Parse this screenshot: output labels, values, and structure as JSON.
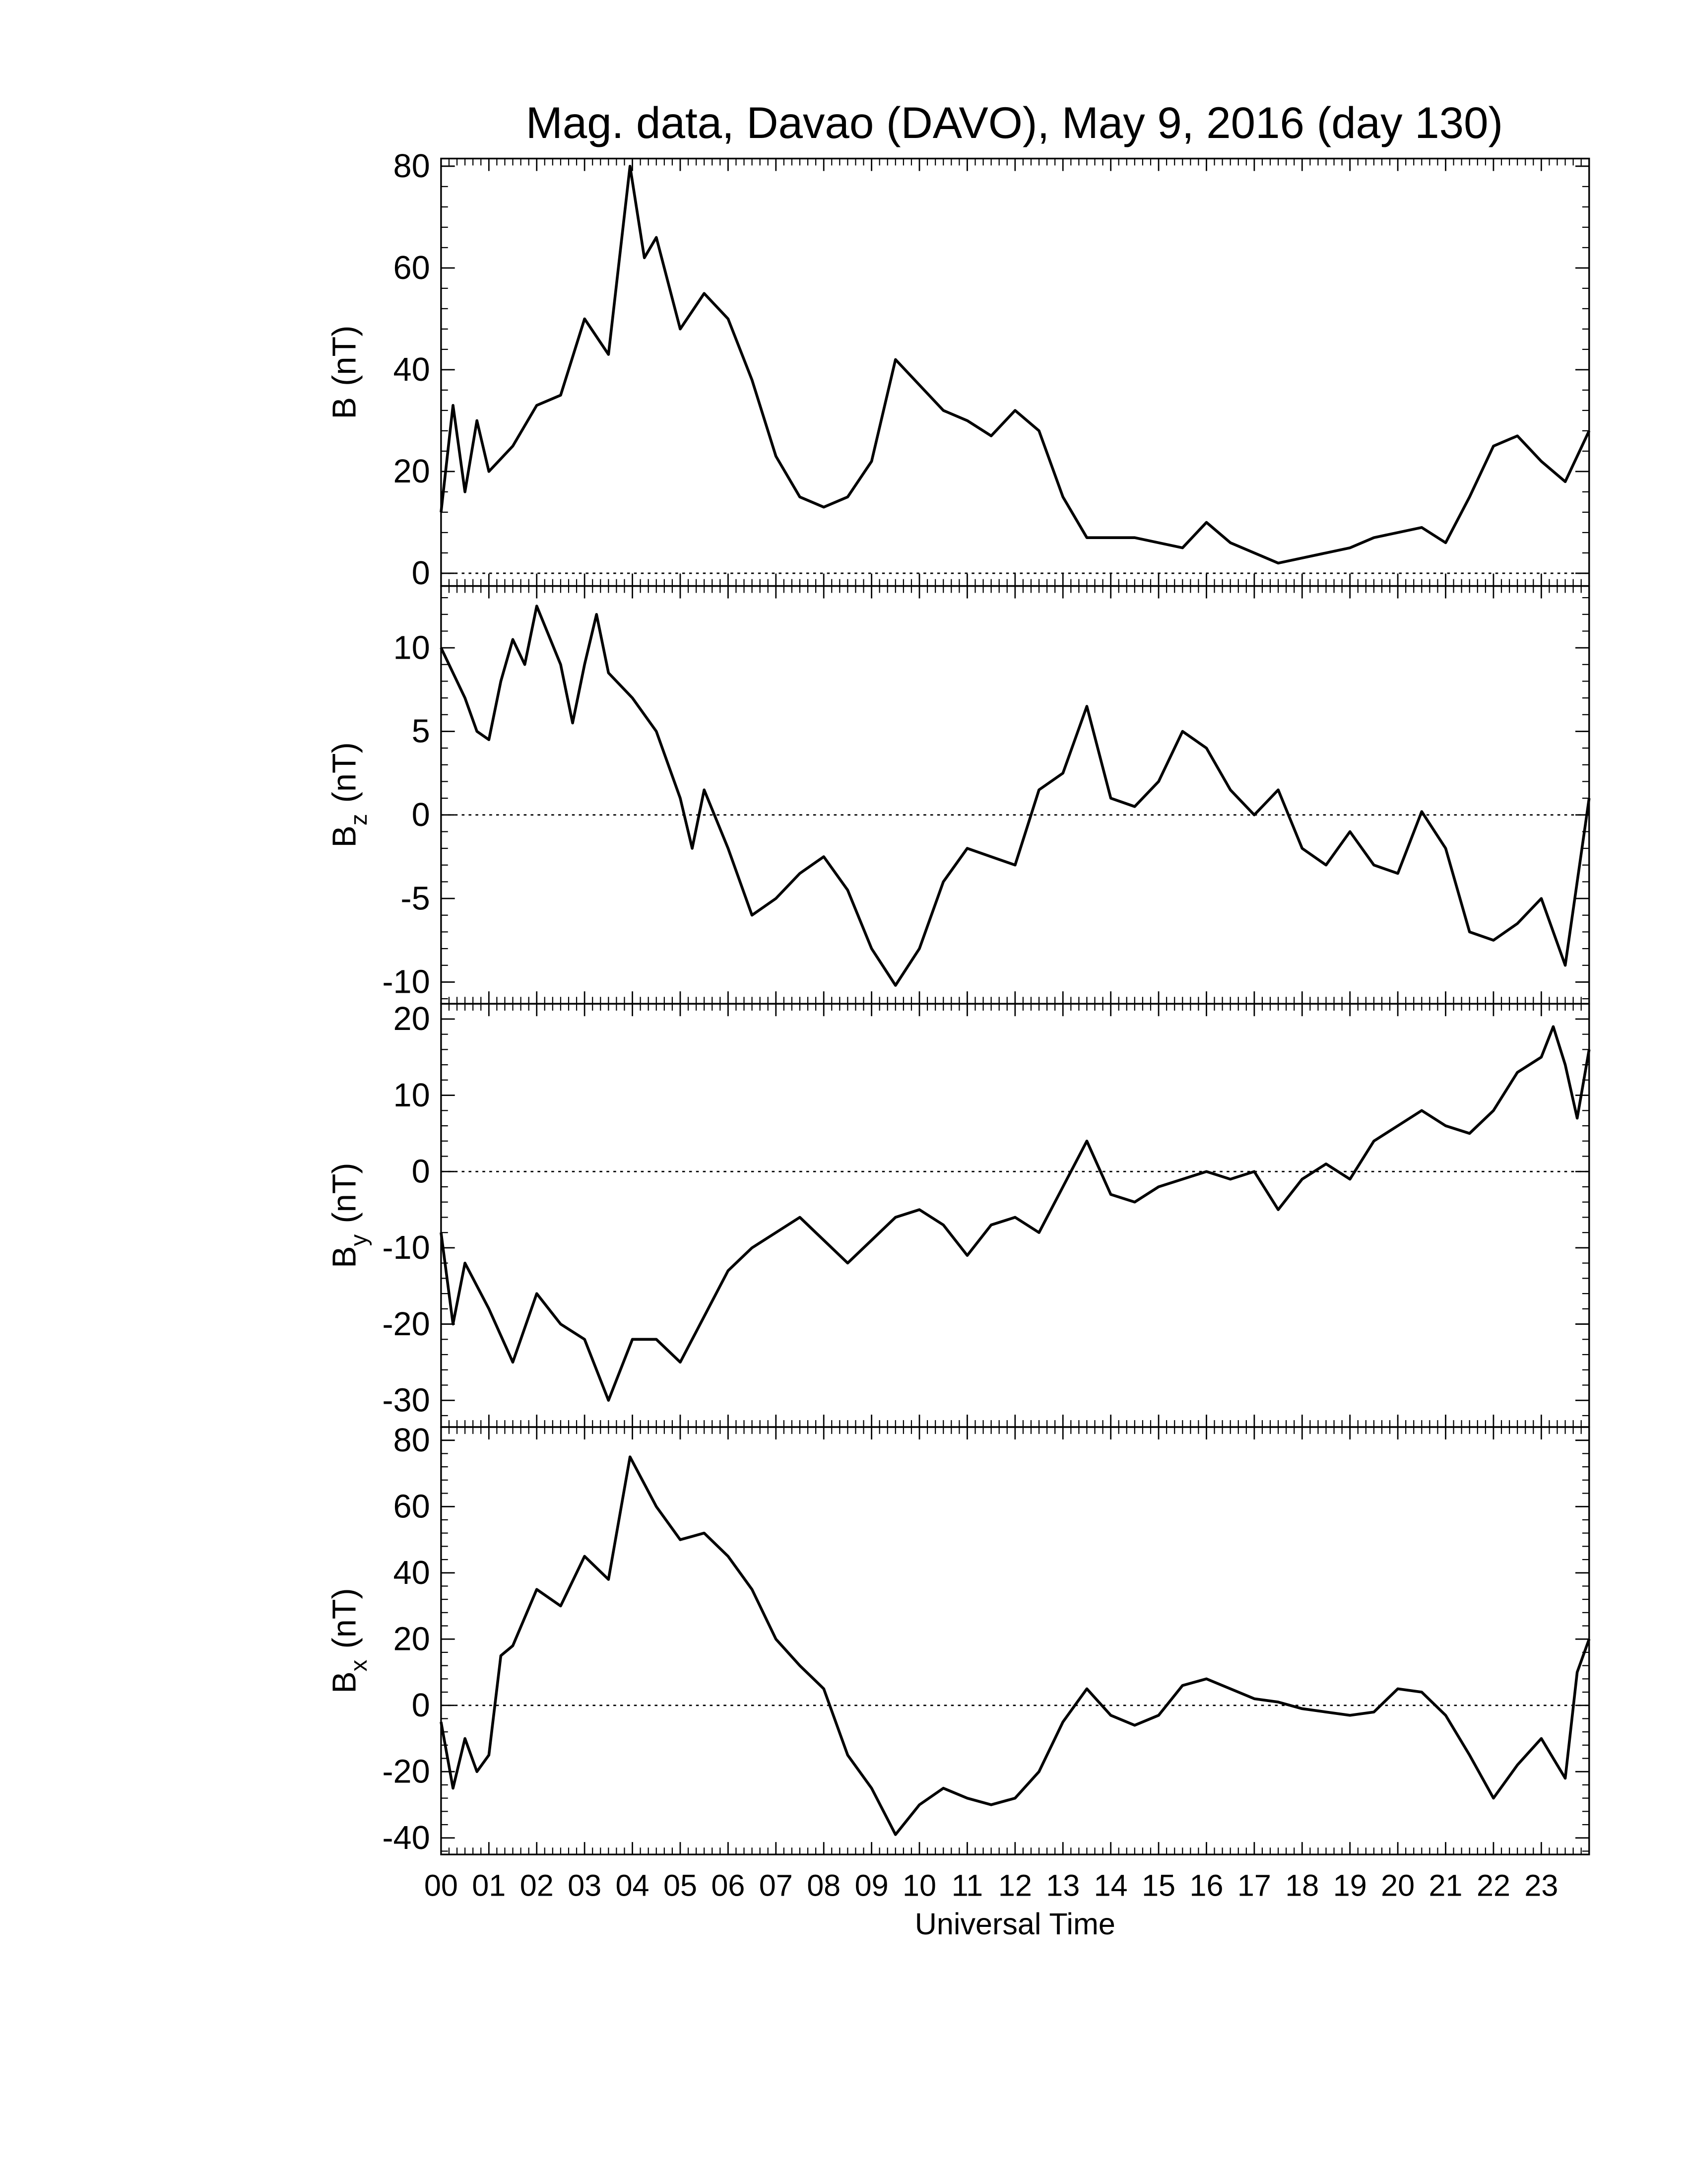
{
  "chart_data": [
    {
      "type": "line",
      "title": "Mag. data, Davao (DAVO), May 9, 2016 (day 130)",
      "ylabel": "B",
      "ylabel_unit": "(nT)",
      "color": "#000000",
      "zero_line": true,
      "xlim": [
        0,
        24
      ],
      "ylim": [
        -2.5,
        81.5
      ],
      "yticks": [
        0,
        20,
        40,
        60,
        80
      ],
      "x": [
        0,
        0.25,
        0.5,
        0.75,
        1,
        1.5,
        2,
        2.5,
        3,
        3.5,
        3.95,
        4.25,
        4.5,
        5,
        5.5,
        6,
        6.5,
        7,
        7.5,
        8,
        8.5,
        9,
        9.5,
        10,
        10.5,
        11,
        11.5,
        12,
        12.5,
        13,
        13.5,
        14,
        14.5,
        15,
        15.5,
        16,
        16.5,
        17,
        17.5,
        18,
        18.5,
        19,
        19.5,
        20,
        20.5,
        21,
        21.5,
        22,
        22.5,
        23,
        23.5,
        24
      ],
      "values": [
        12,
        33,
        16,
        30,
        20,
        25,
        33,
        35,
        50,
        43,
        80,
        62,
        66,
        48,
        55,
        50,
        38,
        23,
        15,
        13,
        15,
        22,
        42,
        37,
        32,
        30,
        27,
        32,
        28,
        15,
        7,
        7,
        7,
        6,
        5,
        10,
        6,
        4,
        2,
        3,
        4,
        5,
        7,
        8,
        9,
        6,
        15,
        25,
        27,
        22,
        18,
        28
      ]
    },
    {
      "type": "line",
      "ylabel": "B",
      "ylabel_sub": "z",
      "ylabel_unit": "(nT)",
      "color": "#000000",
      "zero_line": true,
      "xlim": [
        0,
        24
      ],
      "ylim": [
        -11.3,
        13.7
      ],
      "yticks": [
        -10,
        -5,
        0,
        5,
        10
      ],
      "x": [
        0,
        0.5,
        0.75,
        1,
        1.25,
        1.5,
        1.75,
        2,
        2.5,
        2.75,
        3,
        3.25,
        3.5,
        4,
        4.5,
        5,
        5.25,
        5.5,
        6,
        6.5,
        7,
        7.5,
        8,
        8.5,
        9,
        9.5,
        10,
        10.5,
        11,
        11.5,
        12,
        12.5,
        13,
        13.5,
        14,
        14.5,
        15,
        15.5,
        16,
        16.5,
        17,
        17.5,
        18,
        18.5,
        19,
        19.5,
        20,
        20.5,
        21,
        21.5,
        22,
        22.5,
        23,
        23.5,
        24
      ],
      "values": [
        10,
        7,
        5,
        4.5,
        8,
        10.5,
        9,
        12.5,
        9,
        5.5,
        9,
        12,
        8.5,
        7,
        5,
        1,
        -2,
        1.5,
        -2,
        -6,
        -5,
        -3.5,
        -2.5,
        -4.5,
        -8,
        -10.2,
        -8,
        -4,
        -2,
        -2.5,
        -3,
        1.5,
        2.5,
        6.5,
        1,
        0.5,
        2,
        5,
        4,
        1.5,
        0,
        1.5,
        -2,
        -3,
        -1,
        -3,
        -3.5,
        0.2,
        -2,
        -7,
        -7.5,
        -6.5,
        -5,
        -9,
        1
      ]
    },
    {
      "type": "line",
      "ylabel": "B",
      "ylabel_sub": "y",
      "ylabel_unit": "(nT)",
      "color": "#000000",
      "zero_line": true,
      "xlim": [
        0,
        24
      ],
      "ylim": [
        -33.5,
        22
      ],
      "yticks": [
        -30,
        -20,
        -10,
        0,
        10,
        20
      ],
      "x": [
        0,
        0.25,
        0.5,
        1,
        1.5,
        2,
        2.5,
        3,
        3.5,
        4,
        4.5,
        5,
        5.5,
        6,
        6.5,
        7,
        7.5,
        8,
        8.5,
        9,
        9.5,
        10,
        10.5,
        11,
        11.5,
        12,
        12.5,
        13,
        13.5,
        14,
        14.5,
        15,
        15.5,
        16,
        16.5,
        17,
        17.5,
        18,
        18.5,
        19,
        19.5,
        20,
        20.5,
        21,
        21.5,
        22,
        22.5,
        23,
        23.25,
        23.5,
        23.75,
        24
      ],
      "values": [
        -8,
        -20,
        -12,
        -18,
        -25,
        -16,
        -20,
        -22,
        -30,
        -22,
        -22,
        -25,
        -19,
        -13,
        -10,
        -8,
        -6,
        -9,
        -12,
        -9,
        -6,
        -5,
        -7,
        -11,
        -7,
        -6,
        -8,
        -2,
        4,
        -3,
        -4,
        -2,
        -1,
        0,
        -1,
        0,
        -5,
        -1,
        1,
        -1,
        4,
        6,
        8,
        6,
        5,
        8,
        13,
        15,
        19,
        14,
        7,
        16
      ]
    },
    {
      "type": "line",
      "ylabel": "B",
      "ylabel_sub": "x",
      "ylabel_unit": "(nT)",
      "xlabel": "Universal Time",
      "color": "#000000",
      "zero_line": true,
      "xlim": [
        0,
        24
      ],
      "ylim": [
        -45,
        84
      ],
      "yticks": [
        -40,
        -20,
        0,
        20,
        40,
        60,
        80
      ],
      "xticks": [
        {
          "value": 0,
          "label": "00"
        },
        {
          "value": 1,
          "label": "01"
        },
        {
          "value": 2,
          "label": "02"
        },
        {
          "value": 3,
          "label": "03"
        },
        {
          "value": 4,
          "label": "04"
        },
        {
          "value": 5,
          "label": "05"
        },
        {
          "value": 6,
          "label": "06"
        },
        {
          "value": 7,
          "label": "07"
        },
        {
          "value": 8,
          "label": "08"
        },
        {
          "value": 9,
          "label": "09"
        },
        {
          "value": 10,
          "label": "10"
        },
        {
          "value": 11,
          "label": "11"
        },
        {
          "value": 12,
          "label": "12"
        },
        {
          "value": 13,
          "label": "13"
        },
        {
          "value": 14,
          "label": "14"
        },
        {
          "value": 15,
          "label": "15"
        },
        {
          "value": 16,
          "label": "16"
        },
        {
          "value": 17,
          "label": "17"
        },
        {
          "value": 18,
          "label": "18"
        },
        {
          "value": 19,
          "label": "19"
        },
        {
          "value": 20,
          "label": "20"
        },
        {
          "value": 21,
          "label": "21"
        },
        {
          "value": 22,
          "label": "22"
        },
        {
          "value": 23,
          "label": "23"
        }
      ],
      "x": [
        0,
        0.25,
        0.5,
        0.75,
        1,
        1.25,
        1.5,
        2,
        2.5,
        3,
        3.5,
        3.95,
        4.5,
        5,
        5.5,
        6,
        6.5,
        7,
        7.5,
        8,
        8.5,
        9,
        9.5,
        10,
        10.5,
        11,
        11.5,
        12,
        12.5,
        13,
        13.5,
        14,
        14.5,
        15,
        15.5,
        16,
        16.5,
        17,
        17.5,
        18,
        18.5,
        19,
        19.5,
        20,
        20.5,
        21,
        21.5,
        22,
        22.5,
        23,
        23.5,
        23.75,
        24
      ],
      "values": [
        -5,
        -25,
        -10,
        -20,
        -15,
        15,
        18,
        35,
        30,
        45,
        38,
        75,
        60,
        50,
        52,
        45,
        35,
        20,
        12,
        5,
        -15,
        -25,
        -39,
        -30,
        -25,
        -28,
        -30,
        -28,
        -20,
        -5,
        5,
        -3,
        -6,
        -3,
        6,
        8,
        5,
        2,
        1,
        -1,
        -2,
        -3,
        -2,
        5,
        4,
        -3,
        -15,
        -28,
        -18,
        -10,
        -22,
        10,
        20
      ]
    }
  ]
}
